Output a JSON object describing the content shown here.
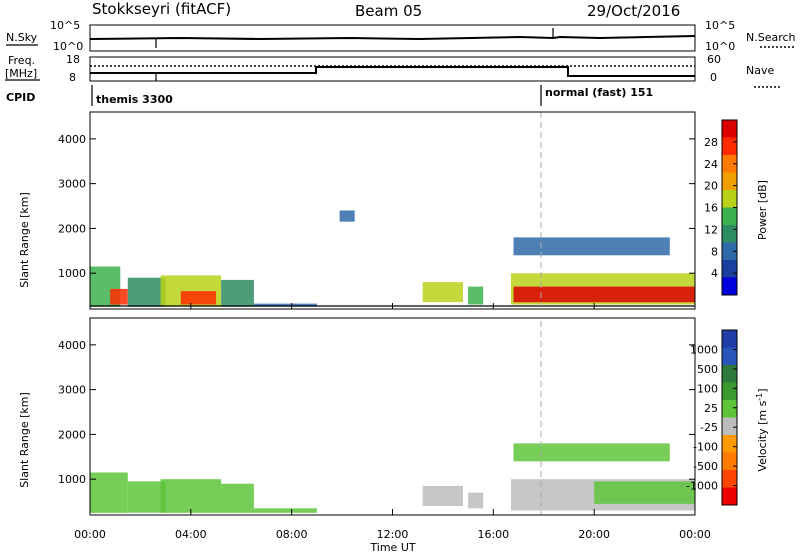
{
  "header": {
    "station": "Stokkseyri (fitACF)",
    "beam": "Beam 05",
    "date": "29/Oct/2016"
  },
  "noise_panel": {
    "left_label": "N.Sky",
    "right_label": "N.Search",
    "left_ticks": [
      "10^5",
      "10^0"
    ],
    "right_ticks": [
      "10^5",
      "10^0"
    ]
  },
  "freq_panel": {
    "left_label_1": "Freq.",
    "left_label_2": "[MHz]",
    "right_label": "Nave",
    "left_ticks": [
      "18",
      "8"
    ],
    "right_ticks": [
      "60",
      "0"
    ]
  },
  "cpid_panel": {
    "label": "CPID",
    "segments": [
      {
        "name": "themis 3300",
        "start_hour": 0.0
      },
      {
        "name": "normal (fast) 151",
        "start_hour": 18.0
      }
    ]
  },
  "x_axis": {
    "label": "Time UT",
    "ticks": [
      "00:00",
      "04:00",
      "08:00",
      "12:00",
      "16:00",
      "20:00",
      "00:00"
    ]
  },
  "colors": {
    "power_scale": [
      "#0000dd",
      "#1a3fa0",
      "#2f6aa8",
      "#2e8c63",
      "#3cb150",
      "#b8d21a",
      "#f0a000",
      "#ff7a00",
      "#ff2a00",
      "#dd0000"
    ],
    "velocity_scale": [
      "#1f3ea8",
      "#2656b8",
      "#2e7a3c",
      "#3a9a30",
      "#5ec43a",
      "#bcbcbc",
      "#ff9a00",
      "#ff7a00",
      "#ff4500",
      "#ee0000"
    ]
  },
  "chart_data": [
    {
      "type": "heatmap",
      "title": "",
      "xlabel": "Time UT",
      "ylabel": "Slant Range [km]",
      "xlim": [
        0,
        24
      ],
      "ylim": [
        200,
        4600
      ],
      "y_ticks": [
        1000,
        2000,
        3000,
        4000
      ],
      "colorbar": {
        "label": "Power [dB]",
        "ticks": [
          "28",
          "24",
          "20",
          "16",
          "12",
          "8",
          "4"
        ],
        "range": [
          0,
          30
        ]
      },
      "echo_regions": [
        {
          "t_start": 0.0,
          "t_end": 1.2,
          "r_min": 250,
          "r_max": 1150,
          "value": 14
        },
        {
          "t_start": 0.8,
          "t_end": 1.5,
          "r_min": 300,
          "r_max": 650,
          "value": 26
        },
        {
          "t_start": 1.5,
          "t_end": 3.0,
          "r_min": 250,
          "r_max": 900,
          "value": 10
        },
        {
          "t_start": 2.8,
          "t_end": 5.2,
          "r_min": 250,
          "r_max": 950,
          "value": 15
        },
        {
          "t_start": 3.6,
          "t_end": 5.0,
          "r_min": 300,
          "r_max": 600,
          "value": 26
        },
        {
          "t_start": 5.2,
          "t_end": 6.5,
          "r_min": 250,
          "r_max": 850,
          "value": 10
        },
        {
          "t_start": 6.5,
          "t_end": 9.0,
          "r_min": 250,
          "r_max": 320,
          "value": 6
        },
        {
          "t_start": 9.9,
          "t_end": 10.5,
          "r_min": 2150,
          "r_max": 2400,
          "value": 6
        },
        {
          "t_start": 13.2,
          "t_end": 14.8,
          "r_min": 350,
          "r_max": 800,
          "value": 15
        },
        {
          "t_start": 15.0,
          "t_end": 15.6,
          "r_min": 300,
          "r_max": 700,
          "value": 12
        },
        {
          "t_start": 16.7,
          "t_end": 24.0,
          "r_min": 300,
          "r_max": 1000,
          "value": 17
        },
        {
          "t_start": 16.8,
          "t_end": 24.0,
          "r_min": 350,
          "r_max": 700,
          "value": 27
        },
        {
          "t_start": 16.8,
          "t_end": 23.0,
          "r_min": 1400,
          "r_max": 1800,
          "value": 6
        }
      ]
    },
    {
      "type": "heatmap",
      "title": "",
      "xlabel": "Time UT",
      "ylabel": "Slant Range [km]",
      "xlim": [
        0,
        24
      ],
      "ylim": [
        200,
        4600
      ],
      "y_ticks": [
        1000,
        2000,
        3000,
        4000
      ],
      "colorbar": {
        "label": "Velocity [m s-1]",
        "ticks": [
          "1000",
          "500",
          "100",
          "25",
          "-25",
          "-100",
          "-500",
          "-1000"
        ],
        "range": [
          -1000,
          1000
        ]
      },
      "echo_regions": [
        {
          "t_start": 0.0,
          "t_end": 1.5,
          "r_min": 250,
          "r_max": 1150,
          "value": 60
        },
        {
          "t_start": 1.5,
          "t_end": 3.0,
          "r_min": 250,
          "r_max": 950,
          "value": 10
        },
        {
          "t_start": 2.8,
          "t_end": 5.2,
          "r_min": 250,
          "r_max": 1000,
          "value": 80
        },
        {
          "t_start": 5.2,
          "t_end": 6.5,
          "r_min": 250,
          "r_max": 900,
          "value": 60
        },
        {
          "t_start": 6.5,
          "t_end": 9.0,
          "r_min": 250,
          "r_max": 350,
          "value": 0
        },
        {
          "t_start": 13.2,
          "t_end": 14.8,
          "r_min": 400,
          "r_max": 850,
          "value": -150
        },
        {
          "t_start": 15.0,
          "t_end": 15.6,
          "r_min": 350,
          "r_max": 700,
          "value": -150
        },
        {
          "t_start": 16.7,
          "t_end": 24.0,
          "r_min": 300,
          "r_max": 1000,
          "value": -150
        },
        {
          "t_start": 20.0,
          "t_end": 24.0,
          "r_min": 450,
          "r_max": 950,
          "value": 0
        },
        {
          "t_start": 16.8,
          "t_end": 23.0,
          "r_min": 1400,
          "r_max": 1800,
          "value": 0
        }
      ]
    }
  ]
}
